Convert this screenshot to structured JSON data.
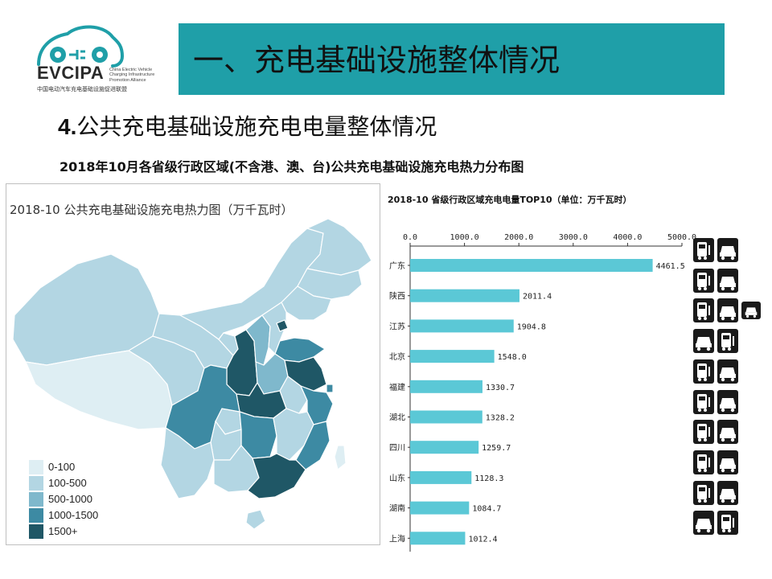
{
  "logo": {
    "wordmark": "EVCIPA",
    "english": "China Electric Vehicle\nCharging Infrastructure\nPromotion Alliance",
    "chinese": "中国电动汽车充电基础设施促进联盟",
    "color": "#1f9fa8"
  },
  "header": {
    "title": "一、充电基础设施整体情况",
    "band_color": "#1f9fa8"
  },
  "section": {
    "number": "4.",
    "title": "公共充电基础设施充电电量整体情况"
  },
  "subtitle": "2018年10月各省级行政区域(不含港、澳、台)公共充电基础设施充电热力分布图",
  "map": {
    "title": "2018-10 公共充电基础设施充电热力图（万千瓦时）",
    "legend": [
      {
        "label": "0-100",
        "color": "#deeef3"
      },
      {
        "label": "100-500",
        "color": "#b3d6e3"
      },
      {
        "label": "500-1000",
        "color": "#7fb8cc"
      },
      {
        "label": "1000-1500",
        "color": "#3d8aa3"
      },
      {
        "label": "1500+",
        "color": "#1f5766"
      }
    ]
  },
  "chart_data": {
    "type": "bar",
    "orientation": "horizontal",
    "title": "2018-10 省级行政区域充电电量TOP10（单位：万千瓦时）",
    "categories": [
      "广东",
      "陕西",
      "江苏",
      "北京",
      "福建",
      "湖北",
      "四川",
      "山东",
      "湖南",
      "上海"
    ],
    "values": [
      4461.5,
      2011.4,
      1904.8,
      1548.0,
      1330.7,
      1328.2,
      1259.7,
      1128.3,
      1084.7,
      1012.4
    ],
    "value_labels": [
      "4461.5",
      "2011.4",
      "1904.8",
      "1548.0",
      "1330.7",
      "1328.2",
      "1259.7",
      "1128.3",
      "1084.7",
      "1012.4"
    ],
    "xlim": [
      0,
      5000
    ],
    "xticks": [
      "0.0",
      "1000.0",
      "2000.0",
      "3000.0",
      "4000.0",
      "5000.0"
    ],
    "bar_color": "#5bc8d6",
    "axis_position": "top",
    "grid": false
  },
  "vehicle_icons": [
    [
      "bus-icon",
      "car-icon"
    ],
    [
      "bus-icon",
      "car-icon"
    ],
    [
      "bus-icon",
      "car-icon",
      "sedan-icon"
    ],
    [
      "car-icon",
      "bus-icon"
    ],
    [
      "bus-icon",
      "car-icon"
    ],
    [
      "bus-icon",
      "car-icon"
    ],
    [
      "bus-icon",
      "car-icon"
    ],
    [
      "bus-icon",
      "car-icon"
    ],
    [
      "bus-icon",
      "car-icon"
    ],
    [
      "car-icon",
      "bus-icon"
    ]
  ]
}
